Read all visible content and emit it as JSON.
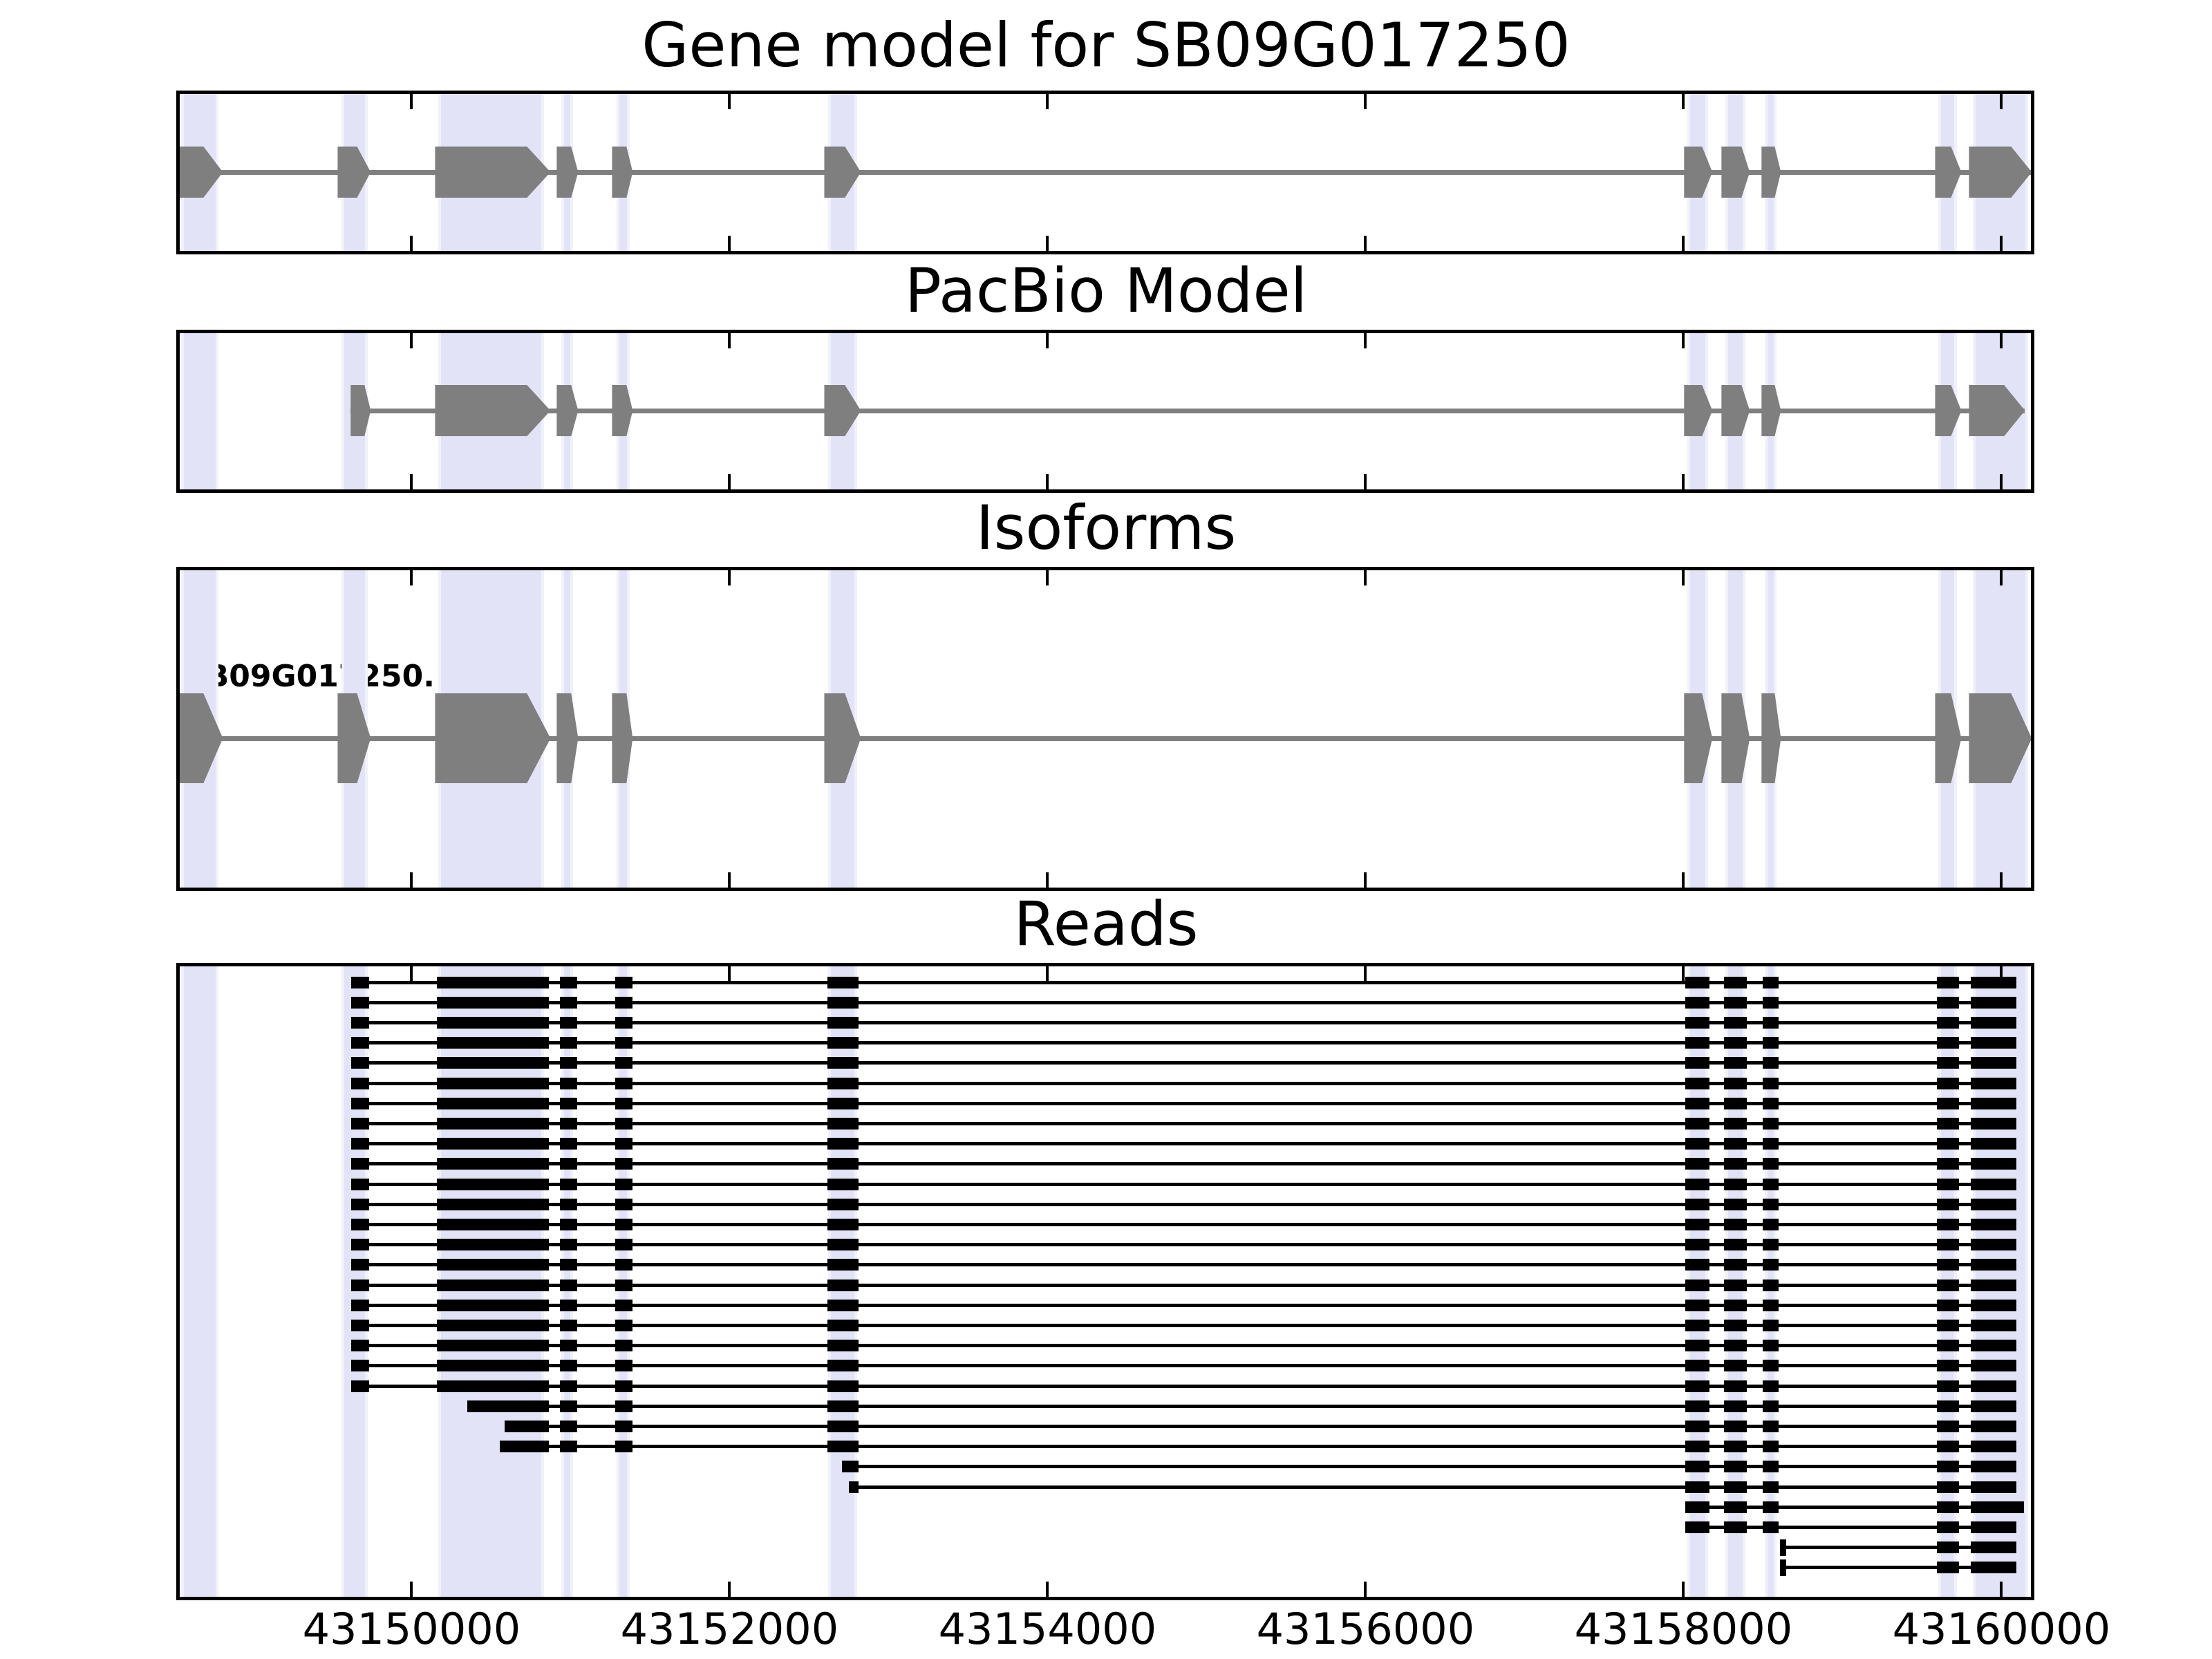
{
  "figure_title": "Gene model for SB09G017250",
  "chart_data": {
    "type": "genome-browser",
    "x_axis": {
      "domain": [
        43148520,
        43160207
      ],
      "ticks": [
        43150000,
        43152000,
        43154000,
        43156000,
        43158000,
        43160000
      ],
      "tick_labels": [
        "43150000",
        "43152000",
        "43154000",
        "43156000",
        "43158000",
        "43160000"
      ]
    },
    "colors": {
      "gene": "#7f7f7f",
      "reads": "#000000",
      "highlight_fill": "#E3E3F8",
      "highlight_edge": "#F1F1FA",
      "frame": "#000000",
      "background": "#ffffff"
    },
    "highlight_regions": [
      [
        43148552,
        43148787
      ],
      [
        43149557,
        43149726
      ],
      [
        43150170,
        43150835
      ],
      [
        43150943,
        43151017
      ],
      [
        43151291,
        43151374
      ],
      [
        43152622,
        43152804
      ],
      [
        43158026,
        43158157
      ],
      [
        43158265,
        43158391
      ],
      [
        43158513,
        43158587
      ],
      [
        43159604,
        43159722
      ],
      [
        43159822,
        43160170
      ]
    ],
    "panels": [
      {
        "name": "gene_model",
        "title": "Gene model for SB09G017250",
        "kind": "gene",
        "line_extent": [
          43148535,
          43160191
        ],
        "exons": [
          [
            43148535,
            43148691,
            43148813
          ],
          [
            43149535,
            43149657,
            43149743
          ],
          [
            43150148,
            43150726,
            43150874
          ],
          [
            43150913,
            43151004,
            43151048
          ],
          [
            43151261,
            43151352,
            43151391
          ],
          [
            43152596,
            43152726,
            43152826
          ],
          [
            43158004,
            43158117,
            43158182
          ],
          [
            43158239,
            43158365,
            43158417
          ],
          [
            43158491,
            43158574,
            43158613
          ],
          [
            43159583,
            43159683,
            43159748
          ],
          [
            43159796,
            43160061,
            43160191
          ]
        ]
      },
      {
        "name": "pacbio_model",
        "title": "PacBio Model",
        "kind": "gene",
        "line_extent": [
          43149617,
          43160148
        ],
        "exons": [
          [
            43149617,
            43149704,
            43149743
          ],
          [
            43150148,
            43150726,
            43150874
          ],
          [
            43150913,
            43151004,
            43151048
          ],
          [
            43151261,
            43151352,
            43151391
          ],
          [
            43152596,
            43152726,
            43152826
          ],
          [
            43158004,
            43158117,
            43158182
          ],
          [
            43158239,
            43158365,
            43158417
          ],
          [
            43158491,
            43158574,
            43158613
          ],
          [
            43159583,
            43159683,
            43159748
          ],
          [
            43159796,
            43160017,
            43160148
          ]
        ]
      },
      {
        "name": "isoforms",
        "title": "Isoforms",
        "kind": "gene",
        "label": "SB09G017250.1",
        "line_extent": [
          43148535,
          43160191
        ],
        "exons": [
          [
            43148535,
            43148691,
            43148813
          ],
          [
            43149535,
            43149657,
            43149743
          ],
          [
            43150148,
            43150726,
            43150874
          ],
          [
            43150913,
            43151004,
            43151048
          ],
          [
            43151261,
            43151352,
            43151391
          ],
          [
            43152596,
            43152726,
            43152826
          ],
          [
            43158004,
            43158117,
            43158182
          ],
          [
            43158239,
            43158365,
            43158417
          ],
          [
            43158491,
            43158574,
            43158613
          ],
          [
            43159583,
            43159683,
            43159748
          ],
          [
            43159796,
            43160061,
            43160191
          ]
        ]
      },
      {
        "name": "reads",
        "title": "Reads",
        "kind": "reads",
        "exon_template": [
          [
            43149622,
            43149735
          ],
          [
            43150161,
            43150865
          ],
          [
            43150935,
            43151040
          ],
          [
            43151280,
            43151390
          ],
          [
            43152615,
            43152810
          ],
          [
            43158010,
            43158165
          ],
          [
            43158255,
            43158400
          ],
          [
            43158500,
            43158600
          ],
          [
            43159596,
            43159735
          ],
          [
            43159809,
            43160096
          ]
        ],
        "rows": [
          {
            "repeat": 21,
            "from": 0
          },
          {
            "from": 1,
            "start": 43150350
          },
          {
            "from": 1,
            "start": 43150585
          },
          {
            "from": 1,
            "start": 43150555
          },
          {
            "from": 4,
            "start": 43152707
          },
          {
            "from": 4,
            "start": 43152750
          },
          {
            "from": 5,
            "end": 43160140
          },
          {
            "from": 5
          },
          {
            "cap": [
              43158607,
              43158645
            ],
            "from": 8
          },
          {
            "cap": [
              43158607,
              43158645
            ],
            "from": 8
          }
        ]
      }
    ]
  }
}
